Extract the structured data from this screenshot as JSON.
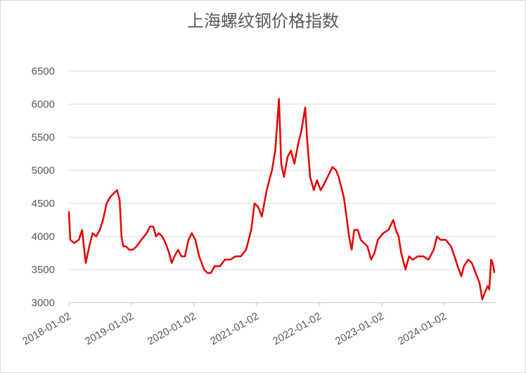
{
  "chart_data": {
    "type": "line",
    "title": "上海螺纹钢价格指数",
    "x": [
      "2018-01-02",
      "2018-01-10",
      "2018-02-01",
      "2018-03-01",
      "2018-03-20",
      "2018-04-10",
      "2018-05-01",
      "2018-05-20",
      "2018-06-10",
      "2018-07-01",
      "2018-07-20",
      "2018-08-10",
      "2018-09-01",
      "2018-09-20",
      "2018-10-10",
      "2018-10-25",
      "2018-11-05",
      "2018-11-15",
      "2018-12-01",
      "2018-12-20",
      "2019-01-10",
      "2019-02-01",
      "2019-03-01",
      "2019-04-01",
      "2019-04-20",
      "2019-05-10",
      "2019-05-25",
      "2019-06-10",
      "2019-07-01",
      "2019-07-20",
      "2019-08-10",
      "2019-08-25",
      "2019-09-10",
      "2019-10-01",
      "2019-10-20",
      "2019-11-10",
      "2019-12-01",
      "2019-12-20",
      "2020-01-10",
      "2020-02-01",
      "2020-03-01",
      "2020-03-20",
      "2020-04-10",
      "2020-05-01",
      "2020-06-01",
      "2020-07-01",
      "2020-08-01",
      "2020-09-01",
      "2020-10-01",
      "2020-11-01",
      "2020-12-01",
      "2020-12-20",
      "2021-01-10",
      "2021-02-01",
      "2021-03-01",
      "2021-04-01",
      "2021-04-20",
      "2021-05-12",
      "2021-05-25",
      "2021-06-10",
      "2021-07-01",
      "2021-07-20",
      "2021-08-10",
      "2021-09-01",
      "2021-09-20",
      "2021-10-12",
      "2021-10-25",
      "2021-11-10",
      "2021-12-01",
      "2021-12-20",
      "2022-01-10",
      "2022-02-01",
      "2022-03-01",
      "2022-03-20",
      "2022-04-10",
      "2022-04-25",
      "2022-05-10",
      "2022-05-25",
      "2022-06-10",
      "2022-06-25",
      "2022-07-10",
      "2022-07-25",
      "2022-08-15",
      "2022-09-01",
      "2022-09-20",
      "2022-10-10",
      "2022-11-01",
      "2022-11-20",
      "2022-12-10",
      "2023-01-10",
      "2023-02-10",
      "2023-03-10",
      "2023-03-25",
      "2023-04-10",
      "2023-04-25",
      "2023-05-20",
      "2023-06-10",
      "2023-07-01",
      "2023-08-01",
      "2023-09-01",
      "2023-10-01",
      "2023-11-01",
      "2023-11-20",
      "2023-12-10",
      "2024-01-10",
      "2024-02-10",
      "2024-03-01",
      "2024-03-20",
      "2024-04-10",
      "2024-04-25",
      "2024-05-20",
      "2024-06-10",
      "2024-06-25",
      "2024-07-10",
      "2024-07-25",
      "2024-08-10",
      "2024-08-25",
      "2024-09-10",
      "2024-09-20",
      "2024-10-01",
      "2024-10-10",
      "2024-10-20"
    ],
    "series": [
      {
        "name": "上海螺纹钢价格指数",
        "color": "#e60000",
        "values": [
          4380,
          3950,
          3900,
          3950,
          4100,
          3600,
          3850,
          4050,
          4000,
          4100,
          4250,
          4500,
          4600,
          4650,
          4700,
          4550,
          4000,
          3850,
          3850,
          3800,
          3800,
          3850,
          3950,
          4050,
          4150,
          4150,
          4000,
          4050,
          4000,
          3900,
          3750,
          3600,
          3700,
          3800,
          3700,
          3700,
          3950,
          4050,
          3950,
          3700,
          3500,
          3450,
          3450,
          3550,
          3550,
          3650,
          3650,
          3700,
          3700,
          3800,
          4100,
          4500,
          4450,
          4300,
          4700,
          5000,
          5300,
          6080,
          5100,
          4900,
          5200,
          5300,
          5100,
          5400,
          5600,
          5950,
          5400,
          4900,
          4700,
          4850,
          4700,
          4800,
          4950,
          5050,
          5000,
          4900,
          4750,
          4600,
          4300,
          4000,
          3800,
          4100,
          4100,
          3950,
          3900,
          3850,
          3650,
          3750,
          3950,
          4050,
          4100,
          4250,
          4100,
          4000,
          3750,
          3500,
          3700,
          3650,
          3700,
          3700,
          3650,
          3800,
          4000,
          3950,
          3950,
          3850,
          3700,
          3550,
          3400,
          3550,
          3650,
          3600,
          3500,
          3400,
          3300,
          3050,
          3150,
          3250,
          3200,
          3650,
          3600,
          3450
        ]
      }
    ],
    "xlim": [
      "2018-01-02",
      "2024-10-28"
    ],
    "xticks": [
      "2018-01-02",
      "2019-01-02",
      "2020-01-02",
      "2021-01-02",
      "2022-01-02",
      "2023-01-02",
      "2024-01-02"
    ],
    "ylim": [
      3000,
      6500
    ],
    "yticks": [
      3000,
      3500,
      4000,
      4500,
      5000,
      5500,
      6000,
      6500
    ],
    "grid": true
  }
}
